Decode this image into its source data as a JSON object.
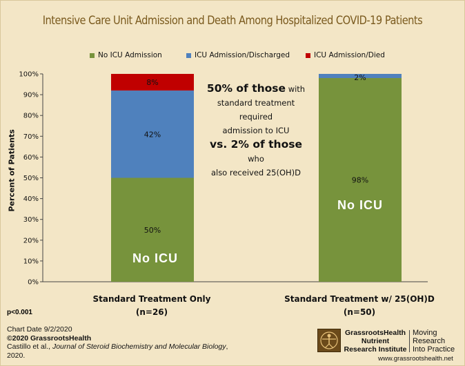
{
  "chart_data": {
    "type": "bar",
    "stacked": true,
    "title": "Intensive Care Unit Admission and Death Among Hospitalized COVID-19 Patients",
    "ylabel": "Percent of Patients",
    "xlabel": "",
    "ylim": [
      0,
      100
    ],
    "yticks": [
      "0%",
      "10%",
      "20%",
      "30%",
      "40%",
      "50%",
      "60%",
      "70%",
      "80%",
      "90%",
      "100%"
    ],
    "categories": [
      "Standard Treatment Only",
      "Standard Treatment w/ 25(OH)D"
    ],
    "category_n": [
      "(n=26)",
      "(n=50)"
    ],
    "series": [
      {
        "name": "No ICU Admission",
        "values": [
          50,
          98
        ],
        "labels": [
          "50%",
          "98%"
        ],
        "color": "#77933c"
      },
      {
        "name": "ICU Admission/Discharged",
        "values": [
          42,
          2
        ],
        "labels": [
          "42%",
          "2%"
        ],
        "color": "#4f81bd"
      },
      {
        "name": "ICU Admission/Died",
        "values": [
          8,
          0
        ],
        "labels": [
          "8%",
          ""
        ],
        "color": "#c00000"
      }
    ],
    "inbar_annotations": [
      "No ICU",
      "No ICU"
    ],
    "legend_position": "top"
  },
  "callout": {
    "line1": "50% of those",
    "line1b": "with",
    "line2": "standard treatment required",
    "line3": "admission to ICU",
    "line4": "vs. 2% of those",
    "line4b": "who",
    "line5": "also received 25(OH)D"
  },
  "footer": {
    "p_value": "p<0.001",
    "chart_date": "Chart Date 9/2/2020",
    "copyright": "©2020 GrassrootsHealth",
    "citation_pre": "Castillo et al., ",
    "citation_journal": "Journal of Steroid Biochemistry and Molecular Biology",
    "citation_post": ", 2020."
  },
  "logo": {
    "name_line1": "GrassrootsHealth",
    "name_line2": "Nutrient",
    "name_line3": "Research Institute",
    "tag_line1": "Moving",
    "tag_line2": "Research",
    "tag_line3": "Into Practice",
    "website": "www.grassrootshealth.net"
  }
}
